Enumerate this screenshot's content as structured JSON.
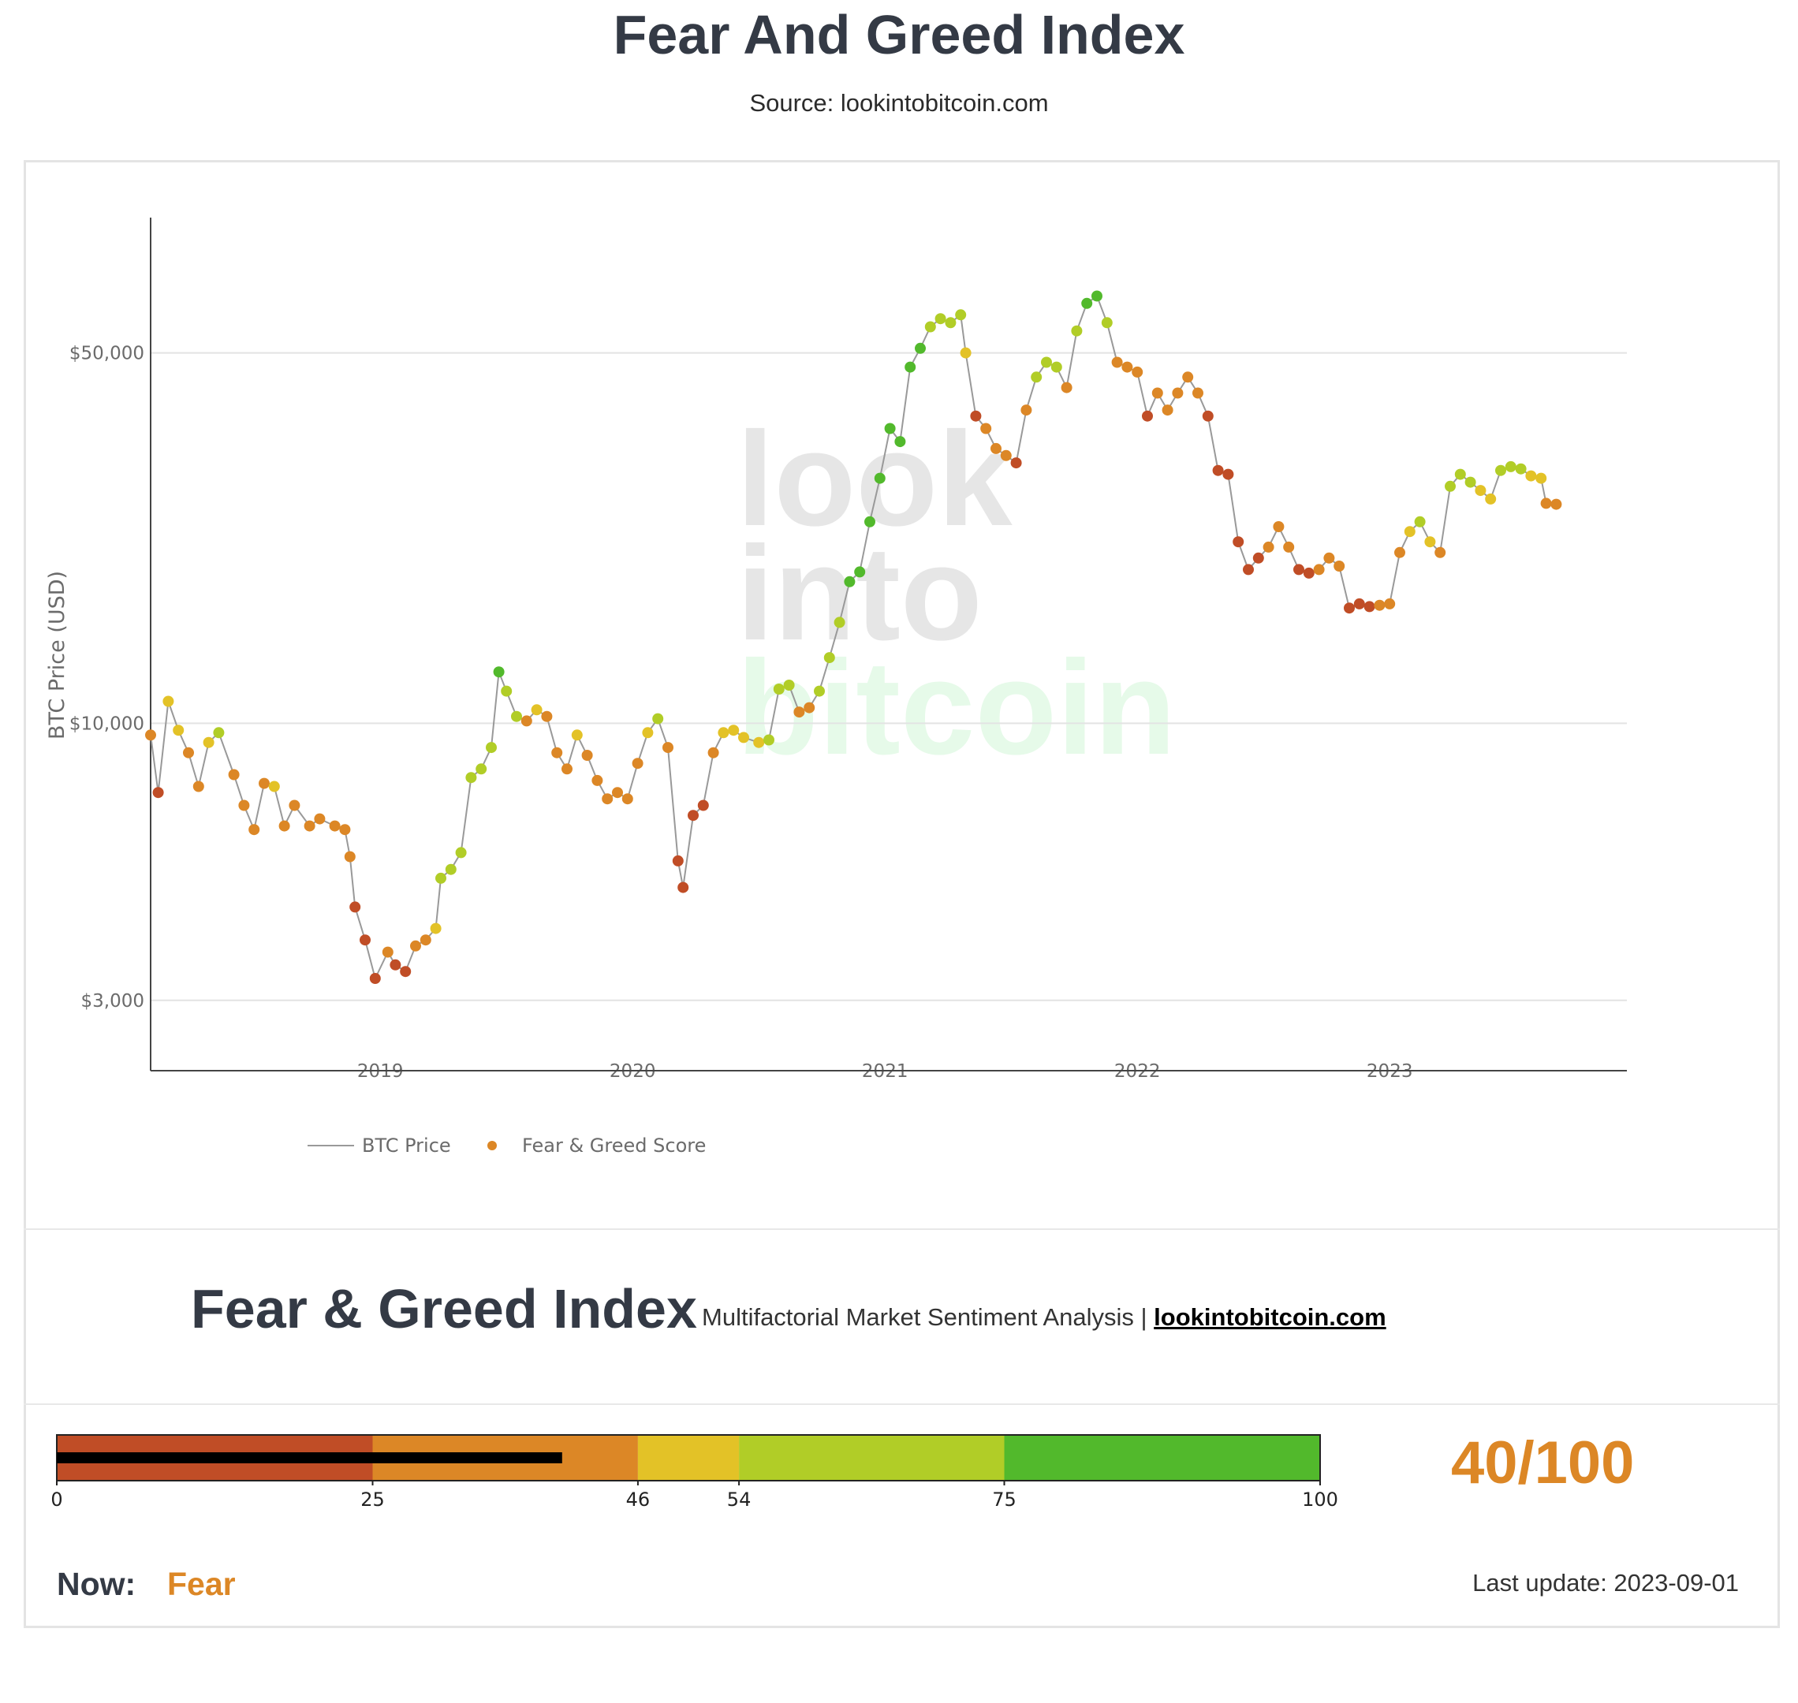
{
  "header": {
    "title": "Fear And Greed Index",
    "source": "Source: lookintobitcoin.com"
  },
  "watermark": [
    "look",
    "into",
    "bitcoin"
  ],
  "chart_data": {
    "type": "scatter",
    "title": "",
    "xlabel": "",
    "ylabel": "BTC Price (USD)",
    "yscale": "log",
    "ylim": [
      2500,
      90000
    ],
    "xlim": [
      2018.09,
      2023.94
    ],
    "x_ticks": [
      2019,
      2020,
      2021,
      2022,
      2023
    ],
    "x_tick_labels": [
      "2019",
      "2020",
      "2021",
      "2022",
      "2023"
    ],
    "y_ticks": [
      3000,
      10000,
      50000
    ],
    "y_tick_labels": [
      "$3,000",
      "$10,000",
      "$50,000"
    ],
    "grid": "horizontal",
    "legend_position": "bottom-left",
    "series": [
      {
        "name": "BTC Price",
        "type": "line",
        "color": "#999999"
      },
      {
        "name": "Fear & Greed Score",
        "type": "scatter",
        "color": "#dc8726"
      }
    ],
    "color_scale": [
      {
        "max": 25,
        "color": "#c04d26"
      },
      {
        "max": 46,
        "color": "#dc8726"
      },
      {
        "max": 54,
        "color": "#e3c227"
      },
      {
        "max": 75,
        "color": "#b1cd27"
      },
      {
        "max": 100,
        "color": "#52b92c"
      }
    ],
    "points": [
      [
        2018.09,
        9500,
        35
      ],
      [
        2018.12,
        7400,
        20
      ],
      [
        2018.16,
        11000,
        52
      ],
      [
        2018.2,
        9700,
        48
      ],
      [
        2018.24,
        8800,
        45
      ],
      [
        2018.28,
        7600,
        38
      ],
      [
        2018.32,
        9200,
        52
      ],
      [
        2018.36,
        9600,
        55
      ],
      [
        2018.42,
        8000,
        42
      ],
      [
        2018.46,
        7000,
        36
      ],
      [
        2018.5,
        6300,
        30
      ],
      [
        2018.54,
        7700,
        45
      ],
      [
        2018.58,
        7600,
        50
      ],
      [
        2018.62,
        6400,
        34
      ],
      [
        2018.66,
        7000,
        42
      ],
      [
        2018.72,
        6400,
        38
      ],
      [
        2018.76,
        6600,
        44
      ],
      [
        2018.82,
        6400,
        43
      ],
      [
        2018.86,
        6300,
        45
      ],
      [
        2018.88,
        5600,
        30
      ],
      [
        2018.9,
        4500,
        22
      ],
      [
        2018.94,
        3900,
        18
      ],
      [
        2018.98,
        3300,
        12
      ],
      [
        2019.03,
        3700,
        30
      ],
      [
        2019.06,
        3500,
        24
      ],
      [
        2019.1,
        3400,
        20
      ],
      [
        2019.14,
        3800,
        36
      ],
      [
        2019.18,
        3900,
        45
      ],
      [
        2019.22,
        4100,
        52
      ],
      [
        2019.24,
        5100,
        55
      ],
      [
        2019.28,
        5300,
        55
      ],
      [
        2019.32,
        5700,
        58
      ],
      [
        2019.36,
        7900,
        68
      ],
      [
        2019.4,
        8200,
        65
      ],
      [
        2019.44,
        9000,
        70
      ],
      [
        2019.47,
        12500,
        80
      ],
      [
        2019.5,
        11500,
        75
      ],
      [
        2019.54,
        10300,
        55
      ],
      [
        2019.58,
        10100,
        45
      ],
      [
        2019.62,
        10600,
        50
      ],
      [
        2019.66,
        10300,
        46
      ],
      [
        2019.7,
        8800,
        38
      ],
      [
        2019.74,
        8200,
        40
      ],
      [
        2019.78,
        9500,
        48
      ],
      [
        2019.82,
        8700,
        42
      ],
      [
        2019.86,
        7800,
        36
      ],
      [
        2019.9,
        7200,
        28
      ],
      [
        2019.94,
        7400,
        32
      ],
      [
        2019.98,
        7200,
        30
      ],
      [
        2020.02,
        8400,
        44
      ],
      [
        2020.06,
        9600,
        52
      ],
      [
        2020.1,
        10200,
        56
      ],
      [
        2020.14,
        9000,
        45
      ],
      [
        2020.18,
        5500,
        14
      ],
      [
        2020.2,
        4900,
        12
      ],
      [
        2020.24,
        6700,
        22
      ],
      [
        2020.28,
        7000,
        25
      ],
      [
        2020.32,
        8800,
        45
      ],
      [
        2020.36,
        9600,
        50
      ],
      [
        2020.4,
        9700,
        52
      ],
      [
        2020.44,
        9400,
        49
      ],
      [
        2020.5,
        9200,
        47
      ],
      [
        2020.54,
        9300,
        55
      ],
      [
        2020.58,
        11600,
        70
      ],
      [
        2020.62,
        11800,
        72
      ],
      [
        2020.66,
        10500,
        44
      ],
      [
        2020.7,
        10700,
        46
      ],
      [
        2020.74,
        11500,
        55
      ],
      [
        2020.78,
        13300,
        65
      ],
      [
        2020.82,
        15500,
        75
      ],
      [
        2020.86,
        18500,
        85
      ],
      [
        2020.9,
        19300,
        90
      ],
      [
        2020.94,
        24000,
        92
      ],
      [
        2020.98,
        29000,
        93
      ],
      [
        2021.02,
        36000,
        92
      ],
      [
        2021.06,
        34000,
        85
      ],
      [
        2021.1,
        47000,
        90
      ],
      [
        2021.14,
        51000,
        88
      ],
      [
        2021.18,
        56000,
        70
      ],
      [
        2021.22,
        58000,
        72
      ],
      [
        2021.26,
        57000,
        65
      ],
      [
        2021.3,
        59000,
        68
      ],
      [
        2021.32,
        50000,
        48
      ],
      [
        2021.36,
        38000,
        25
      ],
      [
        2021.4,
        36000,
        28
      ],
      [
        2021.44,
        33000,
        30
      ],
      [
        2021.48,
        32000,
        26
      ],
      [
        2021.52,
        31000,
        22
      ],
      [
        2021.56,
        39000,
        45
      ],
      [
        2021.6,
        45000,
        58
      ],
      [
        2021.64,
        48000,
        62
      ],
      [
        2021.68,
        47000,
        55
      ],
      [
        2021.72,
        43000,
        40
      ],
      [
        2021.76,
        55000,
        70
      ],
      [
        2021.8,
        62000,
        80
      ],
      [
        2021.84,
        64000,
        82
      ],
      [
        2021.88,
        57000,
        55
      ],
      [
        2021.92,
        48000,
        30
      ],
      [
        2021.96,
        47000,
        35
      ],
      [
        2022.0,
        46000,
        30
      ],
      [
        2022.04,
        38000,
        22
      ],
      [
        2022.08,
        42000,
        40
      ],
      [
        2022.12,
        39000,
        28
      ],
      [
        2022.16,
        42000,
        35
      ],
      [
        2022.2,
        45000,
        44
      ],
      [
        2022.24,
        42000,
        38
      ],
      [
        2022.28,
        38000,
        25
      ],
      [
        2022.32,
        30000,
        15
      ],
      [
        2022.36,
        29500,
        12
      ],
      [
        2022.4,
        22000,
        10
      ],
      [
        2022.44,
        19500,
        14
      ],
      [
        2022.48,
        20500,
        20
      ],
      [
        2022.52,
        21500,
        28
      ],
      [
        2022.56,
        23500,
        35
      ],
      [
        2022.6,
        21500,
        30
      ],
      [
        2022.64,
        19500,
        25
      ],
      [
        2022.68,
        19200,
        22
      ],
      [
        2022.72,
        19500,
        26
      ],
      [
        2022.76,
        20500,
        30
      ],
      [
        2022.8,
        19800,
        28
      ],
      [
        2022.84,
        16500,
        20
      ],
      [
        2022.88,
        16800,
        22
      ],
      [
        2022.92,
        16600,
        24
      ],
      [
        2022.96,
        16700,
        26
      ],
      [
        2023.0,
        16800,
        30
      ],
      [
        2023.04,
        21000,
        45
      ],
      [
        2023.08,
        23000,
        52
      ],
      [
        2023.12,
        24000,
        55
      ],
      [
        2023.16,
        22000,
        50
      ],
      [
        2023.2,
        21000,
        46
      ],
      [
        2023.24,
        28000,
        60
      ],
      [
        2023.28,
        29500,
        58
      ],
      [
        2023.32,
        28500,
        55
      ],
      [
        2023.36,
        27500,
        50
      ],
      [
        2023.4,
        26500,
        48
      ],
      [
        2023.44,
        30000,
        56
      ],
      [
        2023.48,
        30500,
        58
      ],
      [
        2023.52,
        30200,
        56
      ],
      [
        2023.56,
        29300,
        52
      ],
      [
        2023.6,
        29000,
        50
      ],
      [
        2023.62,
        26000,
        42
      ],
      [
        2023.66,
        25900,
        40
      ]
    ]
  },
  "gauge": {
    "title": "Fear & Greed Index",
    "subtitle": "Multifactorial Market Sentiment Analysis |",
    "link_text": "lookintobitcoin.com",
    "value": 40,
    "score_text": "40/100",
    "bands": [
      {
        "from": 0,
        "to": 25,
        "color": "#c04d26"
      },
      {
        "from": 25,
        "to": 46,
        "color": "#dc8726"
      },
      {
        "from": 46,
        "to": 54,
        "color": "#e3c227"
      },
      {
        "from": 54,
        "to": 75,
        "color": "#b1cd27"
      },
      {
        "from": 75,
        "to": 100,
        "color": "#52b92c"
      }
    ],
    "ticks": [
      "0",
      "25",
      "46",
      "54",
      "75",
      "100"
    ],
    "now_label": "Now:",
    "now_value": "Fear",
    "last_update": "Last update: 2023-09-01"
  }
}
